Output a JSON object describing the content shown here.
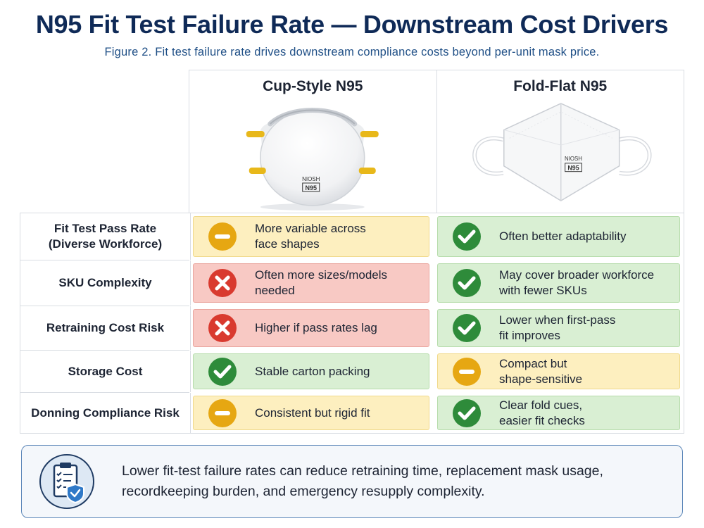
{
  "header": {
    "title": "N95 Fit Test Failure Rate — Downstream Cost Drivers",
    "subtitle": "Figure 2. Fit test failure rate drives downstream compliance costs beyond per-unit mask price."
  },
  "products": [
    {
      "name": "Cup-Style N95",
      "label_top": "NIOSH",
      "label_bottom": "N95",
      "strap_color": "#e8b81a"
    },
    {
      "name": "Fold-Flat N95",
      "label_top": "NIOSH",
      "label_bottom": "N95",
      "strap_color": "#ffffff"
    }
  ],
  "rows": [
    {
      "label": "Fit Test Pass Rate\n(Diverse Workforce)",
      "cup": {
        "status": "neutral",
        "text": "More variable across\nface shapes"
      },
      "fold": {
        "status": "positive",
        "text": "Often better adaptability"
      }
    },
    {
      "label": "SKU Complexity",
      "cup": {
        "status": "negative",
        "text": "Often more sizes/models\nneeded"
      },
      "fold": {
        "status": "positive",
        "text": "May cover broader workforce\nwith fewer SKUs"
      }
    },
    {
      "label": "Retraining Cost Risk",
      "cup": {
        "status": "negative",
        "text": "Higher if pass rates lag"
      },
      "fold": {
        "status": "positive",
        "text": "Lower when first-pass\nfit improves"
      }
    },
    {
      "label": "Storage Cost",
      "cup": {
        "status": "positive",
        "text": "Stable carton packing"
      },
      "fold": {
        "status": "neutral",
        "text": "Compact but\nshape-sensitive"
      }
    },
    {
      "label": "Donning Compliance Risk",
      "cup": {
        "status": "neutral",
        "text": "Consistent but rigid fit"
      },
      "fold": {
        "status": "positive",
        "text": "Clear fold cues,\neasier fit checks"
      }
    }
  ],
  "summary": {
    "text": "Lower fit-test failure rates can reduce retraining time, replacement mask usage, recordkeeping burden, and emergency resupply complexity.",
    "icon": "clipboard-shield-icon"
  },
  "colors": {
    "positive": "#2e8b3a",
    "negative": "#d93a2f",
    "neutral": "#e6a712",
    "title": "#0f2a57",
    "accent": "#1f4f86"
  }
}
